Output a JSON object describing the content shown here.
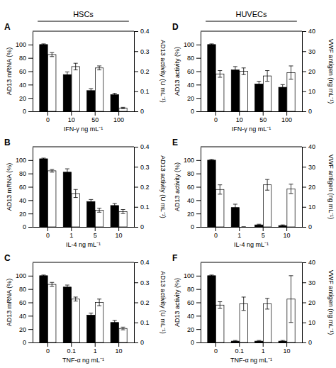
{
  "chart_data": [
    {
      "type": "bar",
      "title": "HSCs",
      "annotations": [
        "A"
      ],
      "xlabel": "IFN-γ ng mL⁻¹",
      "ylabel": "AD13 mRNA (%)",
      "y2label": "AD13 activity (U mL⁻¹)",
      "categories": [
        "0",
        "10",
        "50",
        "100"
      ],
      "series": [
        {
          "color": "#000000",
          "values": [
            100,
            55,
            31,
            25
          ],
          "errors": [
            1,
            4,
            3,
            2
          ]
        },
        {
          "color": "#ffffff",
          "values": [
            85,
            67,
            65,
            5
          ],
          "errors": [
            3,
            5,
            3,
            1
          ]
        }
      ],
      "ylim": [
        0,
        120
      ],
      "yticks": [
        0,
        20,
        40,
        60,
        80,
        100
      ],
      "y2lim": [
        0,
        0.4
      ],
      "y2ticks": [
        0,
        0.1,
        0.2,
        0.3,
        0.4
      ]
    },
    {
      "type": "bar",
      "title": "HUVECs",
      "annotations": [
        "D"
      ],
      "xlabel": "IFN-γ ng mL⁻¹",
      "ylabel": "AD13 activity (%)",
      "y2label": "VWF antigen (ng mL⁻¹)",
      "categories": [
        "0",
        "10",
        "50",
        "100"
      ],
      "series": [
        {
          "color": "#000000",
          "values": [
            100,
            62,
            41,
            36
          ],
          "errors": [
            1,
            5,
            4,
            4
          ]
        },
        {
          "color": "#ffffff",
          "values": [
            56,
            60,
            53,
            58
          ],
          "errors": [
            5,
            5,
            8,
            10
          ]
        }
      ],
      "ylim": [
        0,
        120
      ],
      "yticks": [
        0,
        20,
        40,
        60,
        80,
        100
      ],
      "y2lim": [
        0,
        40
      ],
      "y2ticks": [
        0,
        10,
        20,
        30,
        40
      ]
    },
    {
      "type": "bar",
      "annotations": [
        "B"
      ],
      "xlabel": "IL-4 ng mL⁻¹",
      "ylabel": "AD13 mRNA (%)",
      "y2label": "AD13 activity (U mL⁻¹)",
      "categories": [
        "0",
        "1",
        "5",
        "10"
      ],
      "series": [
        {
          "color": "#000000",
          "values": [
            102,
            82,
            38,
            32
          ],
          "errors": [
            1,
            5,
            3,
            3
          ]
        },
        {
          "color": "#ffffff",
          "values": [
            84,
            50,
            25,
            23
          ],
          "errors": [
            2,
            6,
            3,
            3
          ]
        }
      ],
      "ylim": [
        0,
        120
      ],
      "yticks": [
        0,
        20,
        40,
        60,
        80,
        100
      ],
      "y2lim": [
        0,
        0.4
      ],
      "y2ticks": [
        0,
        0.1,
        0.2,
        0.3,
        0.4
      ]
    },
    {
      "type": "bar",
      "annotations": [
        "E"
      ],
      "xlabel": "IL-4 ng mL⁻¹",
      "ylabel": "AD13 activity (%)",
      "y2label": "VWF antigen (ng mL⁻¹)",
      "categories": [
        "0",
        "1",
        "5",
        "10"
      ],
      "series": [
        {
          "color": "#000000",
          "values": [
            100,
            29,
            3,
            2
          ],
          "errors": [
            1,
            5,
            1,
            1
          ]
        },
        {
          "color": "#ffffff",
          "values": [
            56,
            0,
            63,
            57
          ],
          "errors": [
            7,
            0,
            8,
            7
          ]
        }
      ],
      "ylim": [
        0,
        120
      ],
      "yticks": [
        0,
        20,
        40,
        60,
        80,
        100
      ],
      "y2lim": [
        0,
        40
      ],
      "y2ticks": [
        0,
        10,
        20,
        30,
        40
      ]
    },
    {
      "type": "bar",
      "annotations": [
        "C"
      ],
      "xlabel": "TNF-α ng mL⁻¹",
      "ylabel": "AD13 mRNA (%)",
      "y2label": "AD13 activity (U mL⁻¹)",
      "categories": [
        "0",
        "0.1",
        "1",
        "10"
      ],
      "series": [
        {
          "color": "#000000",
          "values": [
            100,
            83,
            41,
            30
          ],
          "errors": [
            1,
            3,
            3,
            3
          ]
        },
        {
          "color": "#ffffff",
          "values": [
            87,
            65,
            60,
            21
          ],
          "errors": [
            3,
            3,
            5,
            2
          ]
        }
      ],
      "ylim": [
        0,
        120
      ],
      "yticks": [
        0,
        20,
        40,
        60,
        80,
        100
      ],
      "y2lim": [
        0,
        0.4
      ],
      "y2ticks": [
        0,
        0.1,
        0.2,
        0.3,
        0.4
      ]
    },
    {
      "type": "bar",
      "annotations": [
        "F"
      ],
      "xlabel": "TNF-α ng mL⁻¹",
      "ylabel": "AD13 activity (%)",
      "y2label": "VWF antigen (ng mL⁻¹)",
      "categories": [
        "0",
        "0.1",
        "1",
        "10"
      ],
      "series": [
        {
          "color": "#000000",
          "values": [
            100,
            2,
            2,
            2
          ],
          "errors": [
            1,
            1,
            1,
            1
          ]
        },
        {
          "color": "#ffffff",
          "values": [
            56,
            58,
            58,
            65
          ],
          "errors": [
            5,
            10,
            8,
            35
          ]
        }
      ],
      "ylim": [
        0,
        120
      ],
      "yticks": [
        0,
        20,
        40,
        60,
        80,
        100
      ],
      "y2lim": [
        0,
        40
      ],
      "y2ticks": [
        0,
        10,
        20,
        30,
        40
      ]
    }
  ]
}
